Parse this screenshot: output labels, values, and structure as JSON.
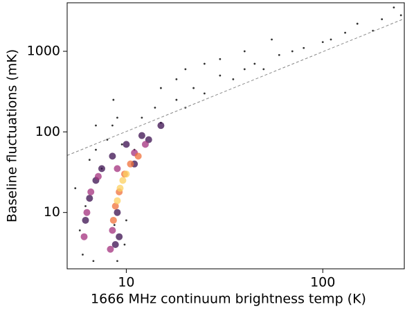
{
  "chart_data": {
    "type": "scatter",
    "xlabel": "1666 MHz continuum brightness temp (K)",
    "ylabel": "Baseline fluctuations (mK)",
    "xscale": "log",
    "yscale": "log",
    "xlim": [
      5,
      260
    ],
    "ylim": [
      2,
      4000
    ],
    "xticks": [
      10,
      100
    ],
    "yticks": [
      10,
      100,
      1000
    ],
    "series": [
      {
        "color": "#000000",
        "x": [
          5.5,
          5.8,
          6,
          6.2,
          6.5,
          7,
          6.8,
          7.5,
          8,
          8.5,
          9,
          9.5,
          8.7,
          9.8,
          10,
          11,
          12,
          14,
          15,
          18,
          20,
          22,
          25,
          30,
          35,
          40,
          45,
          50,
          55,
          60,
          70,
          80,
          100,
          110,
          130,
          150,
          200,
          230,
          180,
          250,
          30,
          40,
          25,
          18,
          15,
          20,
          8.6,
          7,
          9
        ],
        "values": [
          20,
          6,
          3,
          12,
          45,
          60,
          2.5,
          35,
          80,
          120,
          150,
          70,
          7,
          4,
          8,
          60,
          150,
          200,
          130,
          250,
          200,
          350,
          300,
          500,
          450,
          600,
          700,
          600,
          1400,
          900,
          1000,
          1100,
          1300,
          1400,
          1700,
          2200,
          2500,
          3500,
          1800,
          2800,
          800,
          1000,
          700,
          450,
          350,
          600,
          250,
          120,
          2.5
        ]
      },
      {
        "color": "#3b0f4f",
        "x": [
          6.2,
          6.5,
          7,
          7.5,
          8.5,
          10,
          12,
          15,
          9,
          9.2,
          8.8,
          11,
          13
        ],
        "values": [
          8,
          15,
          25,
          35,
          50,
          70,
          90,
          120,
          10,
          5,
          4,
          40,
          80
        ]
      },
      {
        "color": "#a3307e",
        "x": [
          6.3,
          6.6,
          7.2,
          8.3,
          8.5,
          9,
          11,
          12.5,
          6.1
        ],
        "values": [
          10,
          18,
          28,
          3.5,
          6,
          35,
          55,
          70,
          5
        ]
      },
      {
        "color": "#f0703a",
        "x": [
          8.6,
          8.8,
          9.2,
          9.8,
          10.5,
          11.5
        ],
        "values": [
          8,
          12,
          18,
          30,
          40,
          50
        ]
      },
      {
        "color": "#fcd060",
        "x": [
          9,
          9.3,
          9.6,
          10
        ],
        "values": [
          14,
          20,
          25,
          30
        ]
      }
    ],
    "lines": [
      {
        "color": "#888888",
        "x": [
          5,
          260
        ],
        "values": [
          51,
          2540
        ]
      }
    ]
  }
}
